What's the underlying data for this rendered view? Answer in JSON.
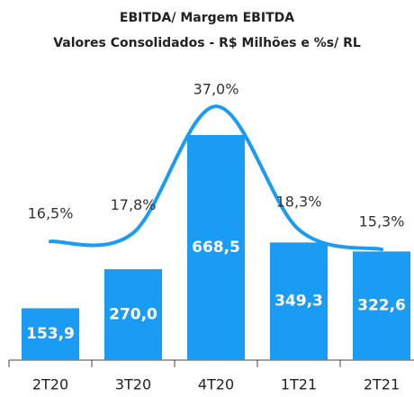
{
  "chart_data": {
    "type": "bar",
    "title": "EBITDA/ Margem EBITDA",
    "subtitle": "Valores Consolidados - R$ Milhões e %s/ RL",
    "categories": [
      "2T20",
      "3T20",
      "4T20",
      "1T21",
      "2T21"
    ],
    "series": [
      {
        "type": "bar",
        "color": "#1a9cf5",
        "values": [
          153.9,
          270.0,
          668.5,
          349.3,
          322.6
        ],
        "value_labels": [
          "153,9",
          "270,0",
          "668,5",
          "349,3",
          "322,6"
        ]
      },
      {
        "type": "line",
        "axis": "y2",
        "color": "#1a9cf5",
        "values": [
          16.5,
          17.8,
          37.0,
          18.3,
          15.3
        ],
        "value_labels": [
          "16,5%",
          "17,8%",
          "37,0%",
          "18,3%",
          "15,3%"
        ]
      }
    ]
  }
}
